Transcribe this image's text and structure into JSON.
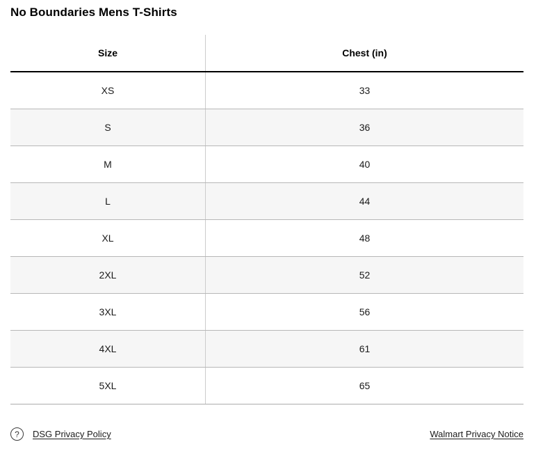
{
  "page": {
    "title": "No Boundaries Mens T-Shirts"
  },
  "table": {
    "columns": {
      "size_label": "Size",
      "chest_label": "Chest (in)"
    },
    "rows": [
      {
        "size": "XS",
        "chest": "33"
      },
      {
        "size": "S",
        "chest": "36"
      },
      {
        "size": "M",
        "chest": "40"
      },
      {
        "size": "L",
        "chest": "44"
      },
      {
        "size": "XL",
        "chest": "48"
      },
      {
        "size": "2XL",
        "chest": "52"
      },
      {
        "size": "3XL",
        "chest": "56"
      },
      {
        "size": "4XL",
        "chest": "61"
      },
      {
        "size": "5XL",
        "chest": "65"
      }
    ]
  },
  "footer": {
    "help_icon_glyph": "?",
    "left_link": "DSG Privacy Policy",
    "right_link": "Walmart Privacy Notice"
  },
  "colors": {
    "header_border": "#000000",
    "row_separator": "#b7b7b7",
    "column_divider": "#cccccc",
    "alt_row_background": "#f6f6f6",
    "text": "#1a1a1a"
  }
}
